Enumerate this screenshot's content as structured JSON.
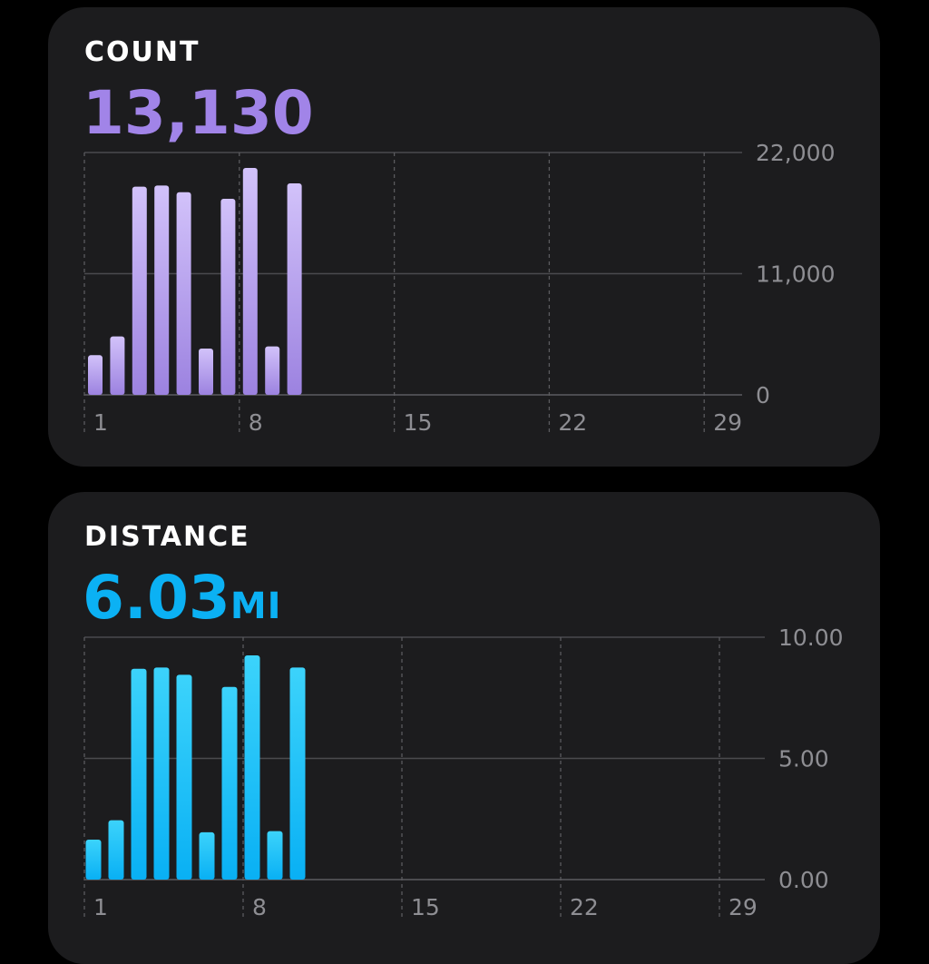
{
  "cards": [
    {
      "title": "COUNT",
      "value": "13,130",
      "unit": "",
      "accent": "#a184e8",
      "bar_top": "#d2c2fa",
      "bar_bottom": "#9c82e0",
      "chart_data": {
        "type": "bar",
        "title": "",
        "x": [
          1,
          2,
          3,
          4,
          5,
          6,
          7,
          8,
          9,
          10
        ],
        "values": [
          3600,
          5300,
          18900,
          19000,
          18400,
          4200,
          17800,
          20600,
          4400,
          19200
        ],
        "ylim": [
          0,
          22000
        ],
        "y_ticks": [
          "22,000",
          "11,000",
          "0"
        ],
        "x_ticks": [
          "1",
          "8",
          "15",
          "22",
          "29"
        ],
        "xlabel": "",
        "ylabel": "",
        "grid": true
      }
    },
    {
      "title": "DISTANCE",
      "value": "6.03",
      "unit": "MI",
      "accent": "#0bb1f4",
      "bar_top": "#3cd3fb",
      "bar_bottom": "#09b0f4",
      "chart_data": {
        "type": "bar",
        "title": "",
        "x": [
          1,
          2,
          3,
          4,
          5,
          6,
          7,
          8,
          9,
          10
        ],
        "values": [
          1.65,
          2.45,
          8.7,
          8.75,
          8.45,
          1.95,
          7.95,
          9.25,
          2.0,
          8.75
        ],
        "ylim": [
          0,
          10
        ],
        "y_ticks": [
          "10.00",
          "5.00",
          "0.00"
        ],
        "x_ticks": [
          "1",
          "8",
          "15",
          "22",
          "29"
        ],
        "xlabel": "",
        "ylabel": "",
        "grid": true
      }
    }
  ]
}
